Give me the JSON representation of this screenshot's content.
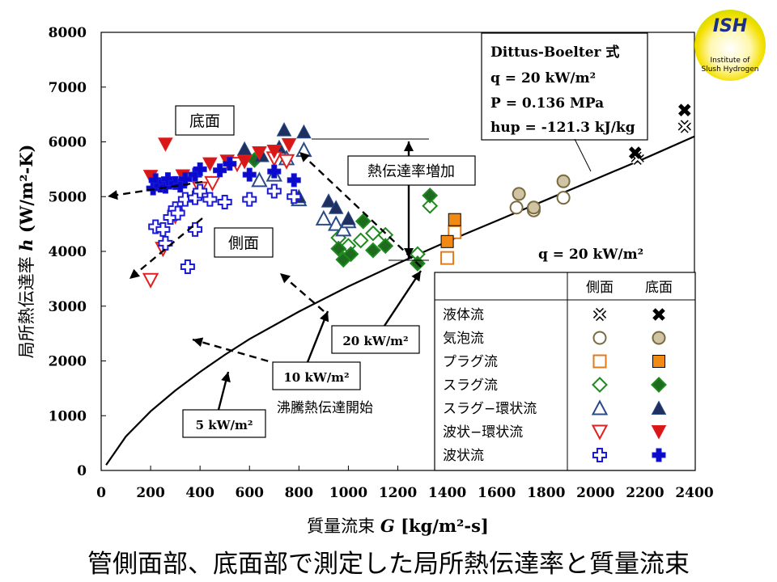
{
  "chart_data": {
    "type": "scatter",
    "title": "",
    "xlabel_main": "質量流束 ",
    "xlabel_sym": "G",
    "xlabel_unit": " [kg/m²-s]",
    "ylabel_main": "局所熱伝達率 ",
    "ylabel_sym": "h",
    "ylabel_unit": " (W/m²-K)",
    "xlim": [
      0,
      2400
    ],
    "ylim": [
      0,
      8000
    ],
    "xticks": [
      0,
      200,
      400,
      600,
      800,
      1000,
      1200,
      1400,
      1600,
      1800,
      2000,
      2200,
      2400
    ],
    "yticks": [
      0,
      1000,
      2000,
      3000,
      4000,
      5000,
      6000,
      7000,
      8000
    ],
    "grid": false,
    "curve_name": "Dittus-Boelter 式",
    "curve": [
      [
        20,
        100
      ],
      [
        100,
        620
      ],
      [
        200,
        1080
      ],
      [
        300,
        1460
      ],
      [
        400,
        1800
      ],
      [
        500,
        2110
      ],
      [
        600,
        2400
      ],
      [
        800,
        2900
      ],
      [
        1000,
        3360
      ],
      [
        1200,
        3780
      ],
      [
        1400,
        4180
      ],
      [
        1600,
        4560
      ],
      [
        1800,
        4940
      ],
      [
        2000,
        5320
      ],
      [
        2200,
        5700
      ],
      [
        2400,
        6100
      ]
    ],
    "legend_header": [
      "側面",
      "底面"
    ],
    "series": [
      {
        "name": "液体流",
        "marker": "x",
        "color": "#000000",
        "side": [
          [
            2170,
            5700
          ],
          [
            2360,
            6280
          ]
        ],
        "bottom": [
          [
            2160,
            5800
          ],
          [
            2360,
            6580
          ]
        ]
      },
      {
        "name": "気泡流",
        "marker": "circle",
        "color": "#7a6a40",
        "fill": "#cfc5a5",
        "side": [
          [
            1680,
            4800
          ],
          [
            1750,
            4750
          ],
          [
            1870,
            4980
          ]
        ],
        "bottom": [
          [
            1690,
            5050
          ],
          [
            1750,
            4800
          ],
          [
            1870,
            5280
          ]
        ]
      },
      {
        "name": "プラグ流",
        "marker": "square",
        "color": "#e07b1a",
        "fill": "#f08a14",
        "side": [
          [
            1400,
            3880
          ],
          [
            1430,
            4350
          ]
        ],
        "bottom": [
          [
            1400,
            4180
          ],
          [
            1430,
            4580
          ]
        ]
      },
      {
        "name": "スラグ流",
        "marker": "diamond",
        "color": "#1e8a1e",
        "fill": "#1e6a1e",
        "side": [
          [
            960,
            4250
          ],
          [
            1000,
            4100
          ],
          [
            1050,
            4200
          ],
          [
            1100,
            4330
          ],
          [
            1150,
            4300
          ],
          [
            1280,
            3950
          ],
          [
            1330,
            4830
          ]
        ],
        "bottom": [
          [
            620,
            5670
          ],
          [
            960,
            4050
          ],
          [
            980,
            3850
          ],
          [
            1010,
            3950
          ],
          [
            1060,
            4550
          ],
          [
            1100,
            4020
          ],
          [
            1150,
            4100
          ],
          [
            1280,
            3780
          ],
          [
            1330,
            5020
          ]
        ]
      },
      {
        "name": "スラグ−環状流",
        "marker": "triangle-up",
        "color": "#2a4a8a",
        "fill": "#1f3060",
        "side": [
          [
            640,
            5300
          ],
          [
            700,
            5400
          ],
          [
            750,
            5700
          ],
          [
            800,
            4950
          ],
          [
            820,
            5850
          ],
          [
            900,
            4600
          ],
          [
            950,
            4500
          ],
          [
            980,
            4400
          ],
          [
            1000,
            4550
          ]
        ],
        "bottom": [
          [
            580,
            5870
          ],
          [
            650,
            5750
          ],
          [
            720,
            5900
          ],
          [
            740,
            6220
          ],
          [
            800,
            5000
          ],
          [
            820,
            6180
          ],
          [
            920,
            4920
          ],
          [
            950,
            4800
          ],
          [
            1000,
            4600
          ]
        ]
      },
      {
        "name": "波状−環状流",
        "marker": "triangle-down",
        "color": "#e02020",
        "fill": "#d81818",
        "side": [
          [
            200,
            3480
          ],
          [
            250,
            4050
          ],
          [
            300,
            4650
          ],
          [
            400,
            5150
          ],
          [
            450,
            5250
          ],
          [
            550,
            5600
          ],
          [
            700,
            5700
          ],
          [
            750,
            5650
          ]
        ],
        "bottom": [
          [
            200,
            5370
          ],
          [
            260,
            5960
          ],
          [
            330,
            5380
          ],
          [
            440,
            5600
          ],
          [
            510,
            5650
          ],
          [
            580,
            5640
          ],
          [
            640,
            5800
          ],
          [
            700,
            5830
          ],
          [
            760,
            5950
          ]
        ]
      },
      {
        "name": "波状流",
        "marker": "cross",
        "color": "#1a1ad8",
        "fill": "#0a0acc",
        "side": [
          [
            220,
            4450
          ],
          [
            250,
            4400
          ],
          [
            260,
            4150
          ],
          [
            280,
            4620
          ],
          [
            300,
            4780
          ],
          [
            310,
            4700
          ],
          [
            340,
            4950
          ],
          [
            350,
            3720
          ],
          [
            380,
            4980
          ],
          [
            380,
            4400
          ],
          [
            400,
            5100
          ],
          [
            440,
            4950
          ],
          [
            500,
            4900
          ],
          [
            600,
            4950
          ],
          [
            700,
            5100
          ],
          [
            780,
            5000
          ]
        ],
        "bottom": [
          [
            210,
            5150
          ],
          [
            220,
            5300
          ],
          [
            240,
            5200
          ],
          [
            260,
            5180
          ],
          [
            270,
            5320
          ],
          [
            300,
            5250
          ],
          [
            320,
            5200
          ],
          [
            340,
            5320
          ],
          [
            380,
            5400
          ],
          [
            400,
            5500
          ],
          [
            480,
            5480
          ],
          [
            520,
            5600
          ],
          [
            600,
            5400
          ],
          [
            700,
            5460
          ],
          [
            780,
            5300
          ]
        ]
      }
    ],
    "annotations": {
      "bottom_label": "底面",
      "side_label": "側面",
      "increase_label": "熱伝達率増加",
      "q_label": "q = 20 kW/m²",
      "db_line1": "Dittus-Boelter 式",
      "db_line2": "q = 20 kW/m²",
      "db_line3": "P = 0.136 MPa",
      "db_line4": "hup = -121.3 kJ/kg",
      "onset_label": "沸騰熱伝達開始",
      "onset_5": "5 kW/m²",
      "onset_10": "10 kW/m²",
      "onset_20": "20 kW/m²"
    }
  },
  "caption": "管側面部、底面部で測定した局所熱伝達率と質量流束",
  "logo": {
    "title": "ISH",
    "line1": "Institute of",
    "line2": "Slush Hydrogen"
  }
}
